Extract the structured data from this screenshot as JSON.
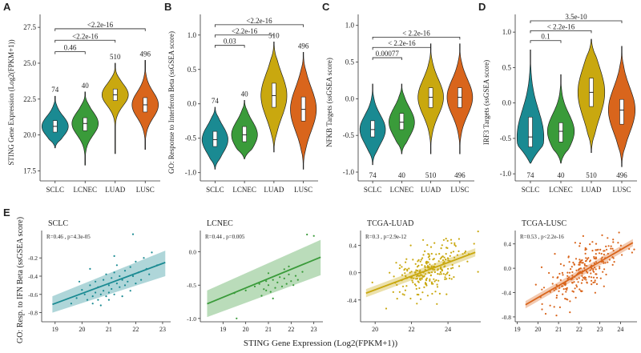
{
  "panel_labels": [
    "A",
    "B",
    "C",
    "D",
    "E"
  ],
  "colors": {
    "SCLC": "#1a8a92",
    "LCNEC": "#3a9b3a",
    "LUAD": "#c9a80f",
    "LUSC": "#d9651c"
  },
  "chart_data": [
    {
      "id": "A",
      "type": "violin",
      "ylabel": "STING Gene Expression (Log2(FPKM+1))",
      "categories": [
        "SCLC",
        "LCNEC",
        "LUAD",
        "LUSC"
      ],
      "ylim": [
        16.8,
        28.4
      ],
      "yticks": [
        17.5,
        20.0,
        22.5,
        25.0,
        27.5
      ],
      "ytick_labels": [
        "17.5",
        "20.0",
        "22.5",
        "25.0",
        "27.5"
      ],
      "n": [
        "74",
        "40",
        "510",
        "496"
      ],
      "n_pos": "above",
      "medians": [
        20.6,
        20.8,
        22.8,
        22.1
      ],
      "q1": [
        20.2,
        20.3,
        22.4,
        21.6
      ],
      "q3": [
        21.0,
        21.2,
        23.2,
        22.6
      ],
      "ranges": [
        [
          19.1,
          22.7
        ],
        [
          17.9,
          23.0
        ],
        [
          18.7,
          25.0
        ],
        [
          19.0,
          25.2
        ]
      ],
      "comparisons": [
        {
          "from": 0,
          "to": 1,
          "label": "0.46",
          "y": 25.8
        },
        {
          "from": 0,
          "to": 2,
          "label": "<2.2e-16",
          "y": 26.6
        },
        {
          "from": 0,
          "to": 3,
          "label": "<2.2e-16",
          "y": 27.4
        }
      ]
    },
    {
      "id": "B",
      "type": "violin",
      "ylabel": "GO: Response to Interferon Beta (ssGSEA score)",
      "categories": [
        "SCLC",
        "LCNEC",
        "LUAD",
        "LUSC"
      ],
      "ylim": [
        -1.12,
        1.3
      ],
      "yticks": [
        -1.0,
        -0.5,
        0.0,
        0.5,
        1.0
      ],
      "ytick_labels": [
        "-1.0",
        "-0.5",
        "0.0",
        "0.5",
        "1.0"
      ],
      "n": [
        "74",
        "40",
        "510",
        "496"
      ],
      "n_pos": "above",
      "medians": [
        -0.52,
        -0.45,
        0.12,
        -0.08
      ],
      "q1": [
        -0.62,
        -0.55,
        -0.05,
        -0.25
      ],
      "q3": [
        -0.4,
        -0.33,
        0.3,
        0.1
      ],
      "ranges": [
        [
          -0.95,
          -0.05
        ],
        [
          -0.8,
          0.05
        ],
        [
          -0.7,
          0.9
        ],
        [
          -0.95,
          0.75
        ]
      ],
      "comparisons": [
        {
          "from": 0,
          "to": 1,
          "label": "0.03",
          "y": 0.85
        },
        {
          "from": 0,
          "to": 2,
          "label": "<2.2e-16",
          "y": 1.0
        },
        {
          "from": 0,
          "to": 3,
          "label": "<2.2e-16",
          "y": 1.15
        }
      ]
    },
    {
      "id": "C",
      "type": "violin",
      "ylabel": "NFKB Targets (ssGSEA score)",
      "categories": [
        "SCLC",
        "LCNEC",
        "LUAD",
        "LUSC"
      ],
      "ylim": [
        -1.12,
        1.15
      ],
      "yticks": [
        -1.0,
        -0.5,
        0.0,
        0.5,
        1.0
      ],
      "ytick_labels": [
        "-1.0",
        "-0.5",
        "0.0",
        "0.5",
        "1.0"
      ],
      "n": [
        "74",
        "40",
        "510",
        "496"
      ],
      "n_pos": "below",
      "medians": [
        -0.42,
        -0.32,
        0.02,
        0.02
      ],
      "q1": [
        -0.52,
        -0.42,
        -0.12,
        -0.12
      ],
      "q3": [
        -0.3,
        -0.2,
        0.15,
        0.15
      ],
      "ranges": [
        [
          -0.9,
          0.2
        ],
        [
          -0.75,
          0.2
        ],
        [
          -0.75,
          0.75
        ],
        [
          -0.75,
          0.75
        ]
      ],
      "comparisons": [
        {
          "from": 0,
          "to": 1,
          "label": "0.00077",
          "y": 0.56
        },
        {
          "from": 0,
          "to": 2,
          "label": "< 2.2e-16",
          "y": 0.7
        },
        {
          "from": 0,
          "to": 3,
          "label": "< 2.2e-16",
          "y": 0.84
        }
      ]
    },
    {
      "id": "D",
      "type": "violin",
      "ylabel": "IRF3 Targets (ssGSEA score)",
      "categories": [
        "SCLC",
        "LCNEC",
        "LUAD",
        "LUSC"
      ],
      "ylim": [
        -1.1,
        1.25
      ],
      "yticks": [
        -1.0,
        -0.5,
        0.0,
        0.5,
        1.0
      ],
      "ytick_labels": [
        "-1.0",
        "-0.5",
        "0.0",
        "0.5",
        "1.0"
      ],
      "n": [
        "74",
        "40",
        "510",
        "496"
      ],
      "n_pos": "below",
      "medians": [
        -0.48,
        -0.4,
        0.15,
        -0.1
      ],
      "q1": [
        -0.62,
        -0.55,
        -0.05,
        -0.3
      ],
      "q3": [
        -0.2,
        -0.28,
        0.35,
        0.05
      ],
      "ranges": [
        [
          -0.85,
          0.75
        ],
        [
          -0.85,
          0.4
        ],
        [
          -0.7,
          0.9
        ],
        [
          -0.9,
          0.8
        ]
      ],
      "comparisons": [
        {
          "from": 0,
          "to": 1,
          "label": "0.1",
          "y": 0.88
        },
        {
          "from": 0,
          "to": 2,
          "label": "< 2.2e-16",
          "y": 1.02
        },
        {
          "from": 0,
          "to": 3,
          "label": "3.5e-10",
          "y": 1.16
        }
      ]
    },
    {
      "id": "E1",
      "type": "scatter",
      "title": "SCLC",
      "stat": "R=0.46 , p=4.3e-05",
      "color": "#1a8a92",
      "xlim": [
        18.5,
        23.3
      ],
      "ylim": [
        -0.9,
        0.1
      ],
      "xticks": [
        19,
        20,
        21,
        22,
        23
      ],
      "xtick_labels": [
        "19",
        "20",
        "21",
        "22",
        "23"
      ],
      "yticks": [
        -0.8,
        -0.6,
        -0.4,
        -0.2
      ],
      "ytick_labels": [
        "-0.8",
        "-0.6",
        "-0.4",
        "-0.2"
      ],
      "fit": {
        "x": [
          18.9,
          23.1
        ],
        "y": [
          -0.71,
          -0.25
        ]
      },
      "band": {
        "lower": [
          -0.8,
          -0.4
        ],
        "upper": [
          -0.62,
          -0.12
        ]
      },
      "points": [
        [
          19.6,
          -0.7
        ],
        [
          19.8,
          -0.64
        ],
        [
          20.0,
          -0.55
        ],
        [
          20.1,
          -0.6
        ],
        [
          20.2,
          -0.66
        ],
        [
          20.3,
          -0.5
        ],
        [
          20.4,
          -0.62
        ],
        [
          20.4,
          -0.7
        ],
        [
          20.5,
          -0.58
        ],
        [
          20.5,
          -0.46
        ],
        [
          20.6,
          -0.66
        ],
        [
          20.6,
          -0.52
        ],
        [
          20.7,
          -0.6
        ],
        [
          20.7,
          -0.72
        ],
        [
          20.8,
          -0.44
        ],
        [
          20.8,
          -0.56
        ],
        [
          20.9,
          -0.62
        ],
        [
          20.9,
          -0.38
        ],
        [
          21.0,
          -0.5
        ],
        [
          21.0,
          -0.58
        ],
        [
          21.0,
          -0.66
        ],
        [
          21.1,
          -0.42
        ],
        [
          21.1,
          -0.54
        ],
        [
          21.2,
          -0.36
        ],
        [
          21.2,
          -0.6
        ],
        [
          21.3,
          -0.48
        ],
        [
          21.3,
          -0.28
        ],
        [
          21.4,
          -0.52
        ],
        [
          21.4,
          -0.4
        ],
        [
          21.5,
          -0.44
        ],
        [
          21.5,
          -0.62
        ],
        [
          21.6,
          -0.34
        ],
        [
          21.6,
          -0.5
        ],
        [
          21.7,
          -0.46
        ],
        [
          21.8,
          -0.3
        ],
        [
          21.8,
          -0.56
        ],
        [
          21.9,
          -0.4
        ],
        [
          22.0,
          -0.24
        ],
        [
          22.0,
          -0.48
        ],
        [
          22.1,
          -0.36
        ],
        [
          22.2,
          -0.44
        ],
        [
          22.3,
          -0.2
        ],
        [
          22.4,
          -0.32
        ],
        [
          22.5,
          -0.38
        ],
        [
          21.9,
          0.06
        ],
        [
          22.6,
          -0.14
        ],
        [
          20.3,
          -0.32
        ],
        [
          19.9,
          -0.46
        ],
        [
          21.2,
          -0.18
        ],
        [
          22.8,
          -0.28
        ]
      ]
    },
    {
      "id": "E2",
      "type": "scatter",
      "title": "LCNEC",
      "stat": "R=0.44 , p=0.005",
      "color": "#3a9b3a",
      "xlim": [
        18.0,
        23.4
      ],
      "ylim": [
        -1.05,
        0.32
      ],
      "xticks": [
        19,
        20,
        21,
        22,
        23
      ],
      "xtick_labels": [
        "19",
        "20",
        "21",
        "22",
        "23"
      ],
      "yticks": [
        -1.0,
        -0.5,
        0.0
      ],
      "ytick_labels": [
        "-1.0",
        "-0.5",
        "0.0"
      ],
      "fit": {
        "x": [
          18.3,
          23.3
        ],
        "y": [
          -0.78,
          -0.08
        ]
      },
      "band": {
        "lower": [
          -0.98,
          -0.35
        ],
        "upper": [
          -0.58,
          0.18
        ]
      },
      "points": [
        [
          19.5,
          -0.62
        ],
        [
          20.0,
          -0.58
        ],
        [
          20.4,
          -0.52
        ],
        [
          20.6,
          -0.48
        ],
        [
          20.8,
          -0.56
        ],
        [
          20.9,
          -0.44
        ],
        [
          21.0,
          -0.5
        ],
        [
          21.1,
          -0.6
        ],
        [
          21.2,
          -0.42
        ],
        [
          21.3,
          -0.54
        ],
        [
          21.4,
          -0.46
        ],
        [
          21.5,
          -0.38
        ],
        [
          21.6,
          -0.52
        ],
        [
          21.7,
          -0.4
        ],
        [
          21.8,
          -0.48
        ],
        [
          21.9,
          -0.34
        ],
        [
          22.0,
          -0.44
        ],
        [
          22.1,
          -0.5
        ],
        [
          22.2,
          -0.36
        ],
        [
          22.3,
          -0.42
        ],
        [
          20.7,
          -0.66
        ],
        [
          21.0,
          -0.32
        ],
        [
          21.9,
          -0.22
        ],
        [
          22.5,
          -0.3
        ],
        [
          22.7,
          0.26
        ],
        [
          23.0,
          0.24
        ],
        [
          19.6,
          -1.0
        ],
        [
          21.2,
          -0.7
        ],
        [
          20.9,
          -0.58
        ],
        [
          21.7,
          -0.26
        ]
      ]
    },
    {
      "id": "E3",
      "type": "scatter",
      "title": "TCGA-LUAD",
      "stat": "R=0.3 , p=2.9e-12",
      "color": "#c9a80f",
      "xlim": [
        19.2,
        25.8
      ],
      "ylim": [
        -0.72,
        0.62
      ],
      "xticks": [
        20,
        22,
        24
      ],
      "xtick_labels": [
        "20",
        "22",
        "24"
      ],
      "yticks": [
        -0.4,
        0.0,
        0.4
      ],
      "ytick_labels": [
        "-0.4",
        "0.0",
        "0.4"
      ],
      "fit": {
        "x": [
          19.5,
          25.5
        ],
        "y": [
          -0.3,
          0.3
        ]
      },
      "band": {
        "lower": [
          -0.36,
          0.24
        ],
        "upper": [
          -0.24,
          0.36
        ]
      },
      "scatter_cloud": {
        "n": 240,
        "x_center": 22.9,
        "x_sd": 0.95,
        "slope": 0.1,
        "intercept": -2.25,
        "noise": 0.2,
        "seed": 11
      }
    },
    {
      "id": "E4",
      "type": "scatter",
      "title": "TCGA-LUSC",
      "stat": "R=0.53 , p<2.2e-16",
      "color": "#d9651c",
      "xlim": [
        18.9,
        24.8
      ],
      "ylim": [
        -0.88,
        0.62
      ],
      "xticks": [
        19,
        20,
        21,
        22,
        23,
        24
      ],
      "xtick_labels": [
        "19",
        "20",
        "21",
        "22",
        "23",
        "24"
      ],
      "yticks": [
        -0.8,
        -0.4,
        0.0,
        0.4
      ],
      "ytick_labels": [
        "-0.8",
        "-0.4",
        "0.0",
        "0.4"
      ],
      "fit": {
        "x": [
          19.4,
          24.6
        ],
        "y": [
          -0.6,
          0.42
        ]
      },
      "band": {
        "lower": [
          -0.66,
          0.36
        ],
        "upper": [
          -0.54,
          0.48
        ]
      },
      "scatter_cloud": {
        "n": 240,
        "x_center": 22.3,
        "x_sd": 1.0,
        "slope": 0.196,
        "intercept": -4.4,
        "noise": 0.2,
        "seed": 29
      }
    }
  ],
  "shared_ylabel_E": "GO: Resp. to IFN Beta (ssGSEA score)",
  "shared_xlabel_E": "STING Gene Expression (Log2(FPKM+1))"
}
